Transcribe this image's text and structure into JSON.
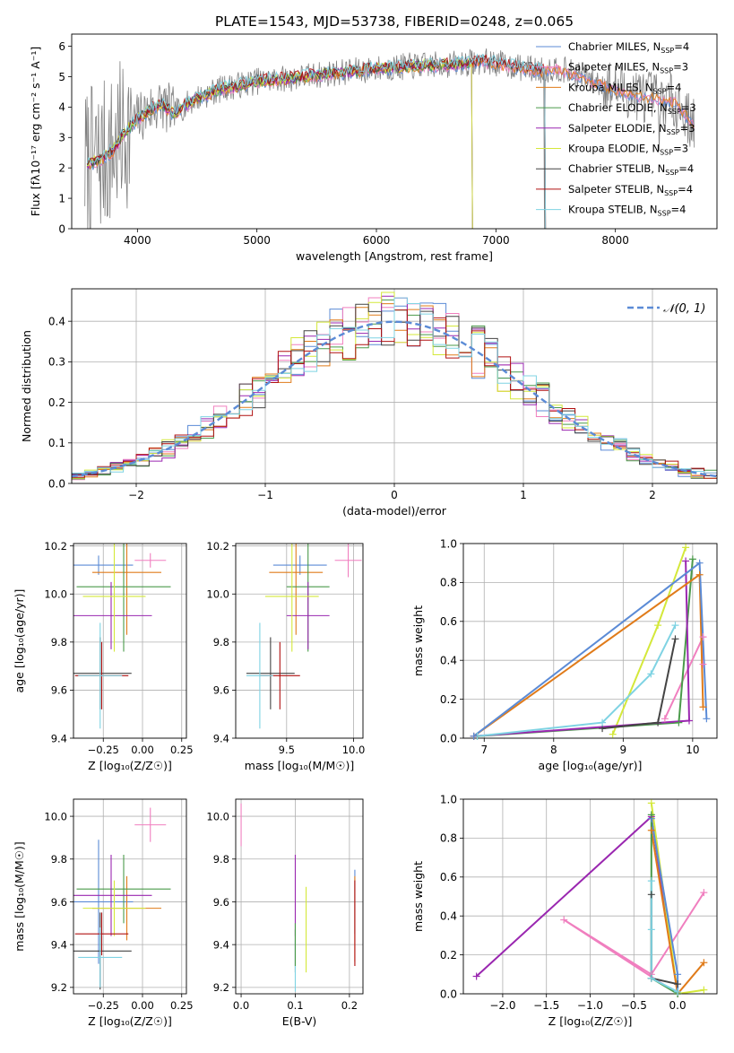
{
  "figure": {
    "title": "PLATE=1543, MJD=53738, FIBERID=0248, z=0.065"
  },
  "model_colors": {
    "Chabrier MILES": "#5b8bd6",
    "Salpeter MILES": "#f07fbf",
    "Kroupa MILES": "#e07b1a",
    "Chabrier ELODIE": "#4a9a4a",
    "Salpeter ELODIE": "#9a27b0",
    "Kroupa ELODIE": "#d4e83a",
    "Chabrier STELIB": "#444444",
    "Salpeter STELIB": "#b01010",
    "Kroupa STELIB": "#7fd3e3"
  },
  "spectrum_legend": [
    {
      "model": "Chabrier MILES",
      "color": "#5b8bd6",
      "label": "Chabrier MILES, N",
      "sub": "SSP",
      "suffix": "=4"
    },
    {
      "model": "Salpeter MILES",
      "color": "#f07fbf",
      "label": "Salpeter MILES, N",
      "sub": "SSP",
      "suffix": "=3"
    },
    {
      "model": "Kroupa MILES",
      "color": "#e07b1a",
      "label": "Kroupa MILES, N",
      "sub": "SSP",
      "suffix": "=4"
    },
    {
      "model": "Chabrier ELODIE",
      "color": "#4a9a4a",
      "label": "Chabrier ELODIE, N",
      "sub": "SSP",
      "suffix": "=3"
    },
    {
      "model": "Salpeter ELODIE",
      "color": "#9a27b0",
      "label": "Salpeter ELODIE, N",
      "sub": "SSP",
      "suffix": "=3"
    },
    {
      "model": "Kroupa ELODIE",
      "color": "#d4e83a",
      "label": "Kroupa ELODIE, N",
      "sub": "SSP",
      "suffix": "=3"
    },
    {
      "model": "Chabrier STELIB",
      "color": "#444444",
      "label": "Chabrier STELIB, N",
      "sub": "SSP",
      "suffix": "=4"
    },
    {
      "model": "Salpeter STELIB",
      "color": "#b01010",
      "label": "Salpeter STELIB, N",
      "sub": "SSP",
      "suffix": "=4"
    },
    {
      "model": "Kroupa STELIB",
      "color": "#7fd3e3",
      "label": "Kroupa STELIB, N",
      "sub": "SSP",
      "suffix": "=4"
    }
  ],
  "chart_data": [
    {
      "id": "spectrum",
      "type": "line",
      "xlabel": "wavelength [Angstrom, rest frame]",
      "ylabel": "Flux [fλ10⁻¹⁷ erg cm⁻² s⁻¹ A⁻¹]",
      "xlim": [
        3450,
        8850
      ],
      "ylim": [
        0,
        6.4
      ],
      "xticks": [
        4000,
        5000,
        6000,
        7000,
        8000
      ],
      "yticks": [
        0,
        1,
        2,
        3,
        4,
        5,
        6
      ],
      "grid": false,
      "legend": "right",
      "continuum": {
        "x": [
          3560,
          3700,
          3800,
          3900,
          4000,
          4100,
          4200,
          4300,
          4500,
          4700,
          5000,
          5300,
          5600,
          6000,
          6300,
          6600,
          6900,
          7000,
          7200,
          7400,
          7500,
          7800,
          8000,
          8200,
          8500,
          8660
        ],
        "y": [
          2.1,
          2.3,
          2.6,
          3.2,
          3.6,
          3.9,
          4.1,
          3.8,
          4.3,
          4.6,
          4.85,
          4.95,
          5.1,
          5.25,
          5.35,
          5.4,
          5.5,
          5.45,
          5.3,
          5.2,
          5.3,
          4.9,
          4.6,
          4.4,
          4.2,
          3.4
        ]
      },
      "observed_color": "#808080"
    },
    {
      "id": "residuals",
      "type": "line",
      "xlabel": "(data-model)/error",
      "ylabel": "Normed distribution",
      "xlim": [
        -2.5,
        2.5
      ],
      "ylim": [
        0,
        0.48
      ],
      "xticks": [
        -2,
        -1,
        0,
        1,
        2
      ],
      "yticks": [
        0,
        0.1,
        0.2,
        0.3,
        0.4
      ],
      "grid": true,
      "legend": "top-right",
      "gaussian_label": "𝒩(0, 1)",
      "gaussian_color": "#5b8bd6"
    },
    {
      "id": "age-Z",
      "type": "scatter",
      "xlabel": "Z [log₁₀(Z/Z☉)]",
      "ylabel": "age  [log₁₀(age/yr)]",
      "xlim": [
        -0.44,
        0.28
      ],
      "ylim": [
        9.4,
        10.21
      ],
      "xticks": [
        -0.25,
        0.0,
        0.25
      ],
      "xtick_labels": [
        "−0.25",
        "0.00",
        "0.25"
      ],
      "yticks": [
        9.4,
        9.6,
        9.8,
        10.0,
        10.2
      ],
      "grid": true,
      "points": [
        {
          "model": "Chabrier MILES",
          "x": -0.28,
          "y": 10.12,
          "xerr": 0.22,
          "yerr": 0.04
        },
        {
          "model": "Salpeter MILES",
          "x": 0.05,
          "y": 10.14,
          "xerr": 0.1,
          "yerr": 0.03
        },
        {
          "model": "Kroupa MILES",
          "x": -0.1,
          "y": 10.09,
          "xerr": 0.22,
          "yerr": 0.26
        },
        {
          "model": "Chabrier ELODIE",
          "x": -0.12,
          "y": 10.03,
          "xerr": 0.3,
          "yerr": 0.27
        },
        {
          "model": "Salpeter ELODIE",
          "x": -0.2,
          "y": 9.91,
          "xerr": 0.26,
          "yerr": 0.14
        },
        {
          "model": "Kroupa ELODIE",
          "x": -0.18,
          "y": 9.99,
          "xerr": 0.2,
          "yerr": 0.23
        },
        {
          "model": "Chabrier STELIB",
          "x": -0.27,
          "y": 9.67,
          "xerr": 0.2,
          "yerr": 0.15
        },
        {
          "model": "Salpeter STELIB",
          "x": -0.26,
          "y": 9.66,
          "xerr": 0.17,
          "yerr": 0.14
        },
        {
          "model": "Kroupa STELIB",
          "x": -0.27,
          "y": 9.66,
          "xerr": 0.14,
          "yerr": 0.22
        }
      ]
    },
    {
      "id": "age-mass",
      "type": "scatter",
      "xlabel": "mass [log₁₀(M/M☉)]",
      "ylabel": "",
      "xlim": [
        9.12,
        10.07
      ],
      "ylim": [
        9.4,
        10.21
      ],
      "xticks": [
        9.5,
        10.0
      ],
      "xtick_labels": [
        "9.5",
        "10.0"
      ],
      "yticks": [
        9.4,
        9.6,
        9.8,
        10.0,
        10.2
      ],
      "grid": true,
      "points": [
        {
          "model": "Chabrier MILES",
          "x": 9.6,
          "y": 10.12,
          "xerr": 0.2,
          "yerr": 0.04
        },
        {
          "model": "Salpeter MILES",
          "x": 9.96,
          "y": 10.14,
          "xerr": 0.1,
          "yerr": 0.07
        },
        {
          "model": "Kroupa MILES",
          "x": 9.57,
          "y": 10.09,
          "xerr": 0.2,
          "yerr": 0.26
        },
        {
          "model": "Chabrier ELODIE",
          "x": 9.66,
          "y": 10.03,
          "xerr": 0.16,
          "yerr": 0.27
        },
        {
          "model": "Salpeter ELODIE",
          "x": 9.66,
          "y": 9.91,
          "xerr": 0.16,
          "yerr": 0.14
        },
        {
          "model": "Kroupa ELODIE",
          "x": 9.54,
          "y": 9.99,
          "xerr": 0.2,
          "yerr": 0.23
        },
        {
          "model": "Chabrier STELIB",
          "x": 9.38,
          "y": 9.67,
          "xerr": 0.18,
          "yerr": 0.15
        },
        {
          "model": "Salpeter STELIB",
          "x": 9.45,
          "y": 9.66,
          "xerr": 0.15,
          "yerr": 0.14
        },
        {
          "model": "Kroupa STELIB",
          "x": 9.3,
          "y": 9.66,
          "xerr": 0.1,
          "yerr": 0.22
        }
      ]
    },
    {
      "id": "weight-age",
      "type": "line",
      "xlabel": "age  [log₁₀(age/yr)]",
      "ylabel": "mass weight",
      "xlim": [
        6.7,
        10.35
      ],
      "ylim": [
        0,
        1.0
      ],
      "xticks": [
        7,
        8,
        9,
        10
      ],
      "yticks": [
        0,
        0.2,
        0.4,
        0.6,
        0.8,
        1.0
      ],
      "grid": true,
      "series": [
        {
          "model": "Salpeter MILES",
          "x": [
            9.6,
            10.15,
            10.15
          ],
          "y": [
            0.1,
            0.52,
            0.38
          ]
        },
        {
          "model": "Kroupa ELODIE",
          "x": [
            8.85,
            9.5,
            9.9
          ],
          "y": [
            0.02,
            0.58,
            0.98
          ]
        },
        {
          "model": "Chabrier ELODIE",
          "x": [
            6.9,
            9.8,
            10.0
          ],
          "y": [
            0.01,
            0.08,
            0.92
          ]
        },
        {
          "model": "Salpeter ELODIE",
          "x": [
            6.85,
            9.95,
            9.9
          ],
          "y": [
            0.01,
            0.09,
            0.91
          ]
        },
        {
          "model": "Chabrier STELIB",
          "x": [
            8.7,
            9.5,
            9.75
          ],
          "y": [
            0.05,
            0.08,
            0.51
          ]
        },
        {
          "model": "Kroupa STELIB",
          "x": [
            6.9,
            8.7,
            9.4,
            9.75
          ],
          "y": [
            0.01,
            0.08,
            0.33,
            0.58
          ]
        },
        {
          "model": "Kroupa MILES",
          "x": [
            6.85,
            10.1,
            10.15
          ],
          "y": [
            0.01,
            0.84,
            0.16
          ]
        },
        {
          "model": "Chabrier MILES",
          "x": [
            6.85,
            10.1,
            10.2
          ],
          "y": [
            0.01,
            0.9,
            0.1
          ]
        }
      ]
    },
    {
      "id": "mass-Z",
      "type": "scatter",
      "xlabel": "Z [log₁₀(Z/Z☉)]",
      "ylabel": "mass [log₁₀(M/M☉)]",
      "xlim": [
        -0.44,
        0.28
      ],
      "ylim": [
        9.17,
        10.08
      ],
      "xticks": [
        -0.25,
        0.0,
        0.25
      ],
      "xtick_labels": [
        "−0.25",
        "0.00",
        "0.25"
      ],
      "yticks": [
        9.2,
        9.4,
        9.6,
        9.8,
        10.0
      ],
      "grid": true,
      "points": [
        {
          "model": "Chabrier MILES",
          "x": -0.28,
          "y": 9.6,
          "xerr": 0.22,
          "yerr": 0.29
        },
        {
          "model": "Salpeter MILES",
          "x": 0.05,
          "y": 9.96,
          "xerr": 0.1,
          "yerr": 0.08
        },
        {
          "model": "Kroupa MILES",
          "x": -0.1,
          "y": 9.57,
          "xerr": 0.22,
          "yerr": 0.15
        },
        {
          "model": "Chabrier ELODIE",
          "x": -0.12,
          "y": 9.66,
          "xerr": 0.3,
          "yerr": 0.16
        },
        {
          "model": "Salpeter ELODIE",
          "x": -0.2,
          "y": 9.63,
          "xerr": 0.26,
          "yerr": 0.19
        },
        {
          "model": "Kroupa ELODIE",
          "x": -0.18,
          "y": 9.57,
          "xerr": 0.2,
          "yerr": 0.13
        },
        {
          "model": "Chabrier STELIB",
          "x": -0.27,
          "y": 9.37,
          "xerr": 0.2,
          "yerr": 0.18
        },
        {
          "model": "Salpeter STELIB",
          "x": -0.26,
          "y": 9.45,
          "xerr": 0.17,
          "yerr": 0.1
        },
        {
          "model": "Kroupa STELIB",
          "x": -0.27,
          "y": 9.34,
          "xerr": 0.14,
          "yerr": 0.14
        }
      ]
    },
    {
      "id": "mass-EBV",
      "type": "scatter",
      "xlabel": "E(B-V)",
      "ylabel": "",
      "xlim": [
        -0.01,
        0.225
      ],
      "ylim": [
        9.17,
        10.08
      ],
      "xticks": [
        0.0,
        0.1,
        0.2
      ],
      "xtick_labels": [
        "0.0",
        "0.1",
        "0.2"
      ],
      "yticks": [
        9.2,
        9.4,
        9.6,
        9.8,
        10.0
      ],
      "grid": true,
      "points": [
        {
          "model": "Salpeter MILES",
          "x": 0.0,
          "y": 9.96,
          "xerr": 0.0,
          "yerr": 0.1
        },
        {
          "model": "Salpeter ELODIE",
          "x": 0.1,
          "y": 9.63,
          "xerr": 0.0,
          "yerr": 0.19
        },
        {
          "model": "Kroupa ELODIE",
          "x": 0.12,
          "y": 9.47,
          "xerr": 0.0,
          "yerr": 0.2
        },
        {
          "model": "Chabrier MILES",
          "x": 0.21,
          "y": 9.6,
          "xerr": 0.0,
          "yerr": 0.15
        },
        {
          "model": "Kroupa MILES",
          "x": 0.21,
          "y": 9.52,
          "xerr": 0.0,
          "yerr": 0.2
        },
        {
          "model": "Salpeter STELIB",
          "x": 0.21,
          "y": 9.5,
          "xerr": 0.0,
          "yerr": 0.2
        },
        {
          "model": "Chabrier STELIB",
          "x": 0.1,
          "y": 9.37,
          "xerr": 0.0,
          "yerr": 0.1
        },
        {
          "model": "Kroupa STELIB",
          "x": 0.1,
          "y": 9.3,
          "xerr": 0.0,
          "yerr": 0.12
        },
        {
          "model": "Chabrier ELODIE",
          "x": 0.1,
          "y": 9.4,
          "xerr": 0.0,
          "yerr": 0.1
        }
      ]
    },
    {
      "id": "weight-Z",
      "type": "line",
      "xlabel": "Z [log₁₀(Z/Z☉)]",
      "ylabel": "mass weight",
      "xlim": [
        -2.45,
        0.45
      ],
      "ylim": [
        0,
        1.0
      ],
      "xticks": [
        -2.0,
        -1.5,
        -1.0,
        -0.5,
        0.0
      ],
      "xtick_labels": [
        "−2.0",
        "−1.5",
        "−1.0",
        "−0.5",
        "0.0"
      ],
      "yticks": [
        0,
        0.2,
        0.4,
        0.6,
        0.8,
        1.0
      ],
      "grid": true,
      "series": [
        {
          "model": "Salpeter ELODIE",
          "x": [
            -2.3,
            -0.3,
            0.0
          ],
          "y": [
            0.09,
            0.91,
            0.0
          ]
        },
        {
          "model": "Salpeter MILES",
          "x": [
            0.3,
            -0.3,
            -1.3,
            0.0
          ],
          "y": [
            0.52,
            0.1,
            0.38,
            0.0
          ]
        },
        {
          "model": "Kroupa ELODIE",
          "x": [
            -0.3,
            0.0,
            0.3
          ],
          "y": [
            0.98,
            0.0,
            0.02
          ]
        },
        {
          "model": "Kroupa MILES",
          "x": [
            0.3,
            0.0,
            -0.3
          ],
          "y": [
            0.16,
            0.0,
            0.84
          ]
        },
        {
          "model": "Chabrier MILES",
          "x": [
            -0.3,
            0.0,
            0.0
          ],
          "y": [
            0.9,
            0.1,
            0.0
          ]
        },
        {
          "model": "Chabrier ELODIE",
          "x": [
            -0.3,
            -0.3,
            0.0
          ],
          "y": [
            0.92,
            0.08,
            0.0
          ]
        },
        {
          "model": "Chabrier STELIB",
          "x": [
            -0.3,
            -0.3,
            0.0
          ],
          "y": [
            0.51,
            0.08,
            0.05
          ]
        },
        {
          "model": "Kroupa STELIB",
          "x": [
            -0.3,
            -0.3,
            -0.3,
            0.0
          ],
          "y": [
            0.58,
            0.33,
            0.08,
            0.01
          ]
        }
      ]
    }
  ]
}
